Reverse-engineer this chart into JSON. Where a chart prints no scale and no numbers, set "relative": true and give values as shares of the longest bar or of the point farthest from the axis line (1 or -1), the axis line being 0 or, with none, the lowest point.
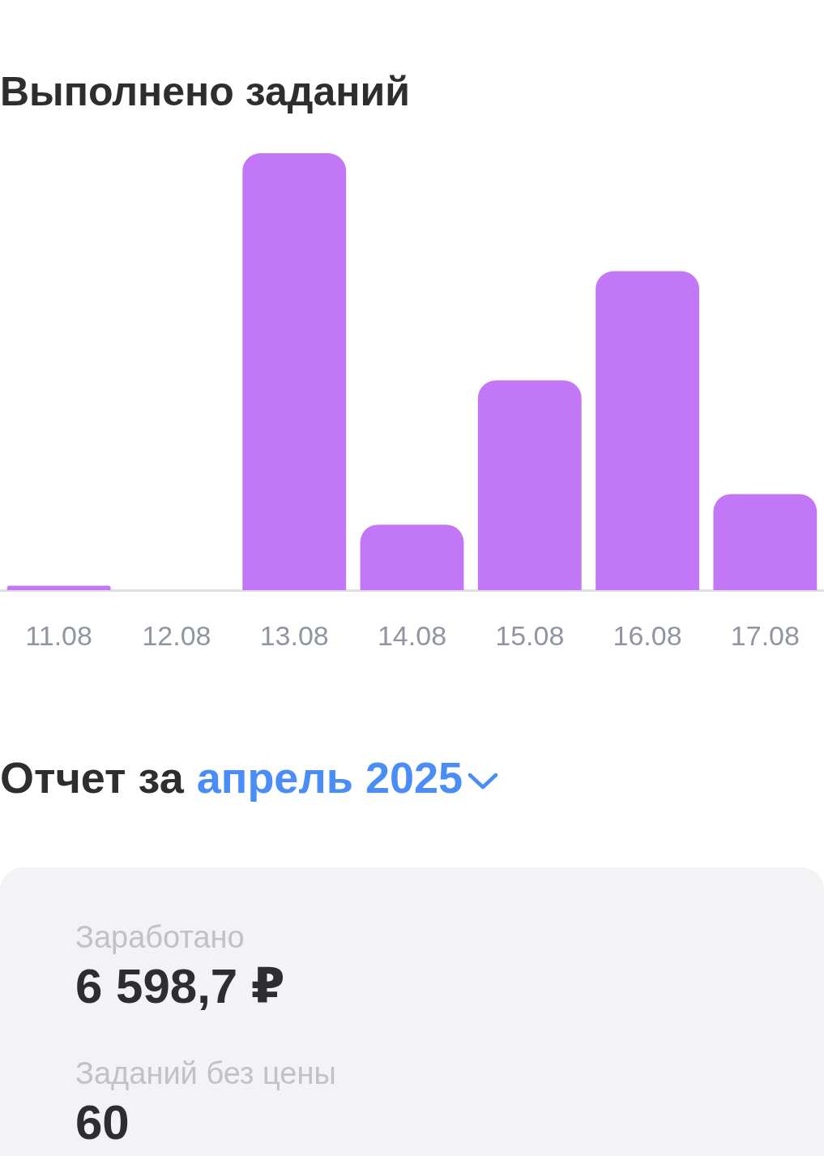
{
  "chart_data": [
    {
      "type": "bar",
      "title": "Выполнено заданий",
      "categories": [
        "11.08",
        "12.08",
        "13.08",
        "14.08",
        "15.08",
        "16.08",
        "17.08"
      ],
      "values": [
        0.01,
        0,
        1,
        0.15,
        0.48,
        0.73,
        0.22
      ],
      "color": "#c278f6",
      "relative": true
    },
    {
      "type": "other",
      "title": "Отчет за",
      "subtitle": "апрель 2025",
      "annotations": [
        "Заработано",
        "6 598,7 ₽",
        "Заданий без цены",
        "60"
      ]
    }
  ]
}
